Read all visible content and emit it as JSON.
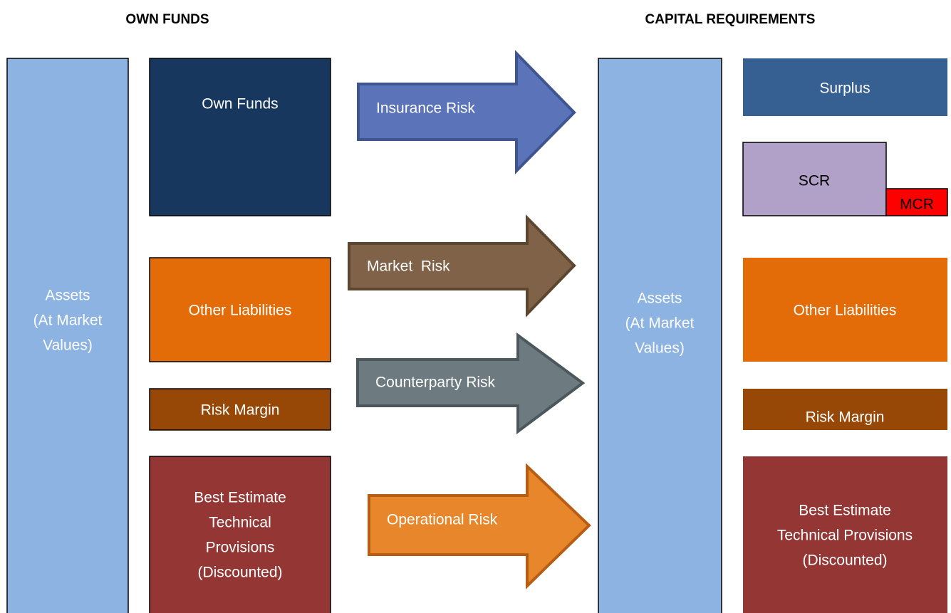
{
  "headers": {
    "left": "OWN FUNDS",
    "right": "CAPITAL REQUIREMENTS"
  },
  "left": {
    "assets": [
      "Assets",
      "(At Market",
      "Values)"
    ],
    "own_funds": "Own Funds",
    "other_liabilities": "Other Liabilities",
    "risk_margin": "Risk Margin",
    "best_estimate": [
      "Best Estimate",
      "Technical",
      "Provisions",
      "(Discounted)"
    ]
  },
  "arrows": [
    "Insurance Risk",
    "Market  Risk",
    "Counterparty Risk",
    "Operational Risk"
  ],
  "right": {
    "assets": [
      "Assets",
      "(At Market",
      "Values)"
    ],
    "surplus": "Surplus",
    "scr": "SCR",
    "mcr": "MCR",
    "other_liabilities": "Other Liabilities",
    "risk_margin": "Risk Margin",
    "best_estimate": [
      "Best Estimate",
      "Technical Provisions",
      "(Discounted)"
    ]
  }
}
